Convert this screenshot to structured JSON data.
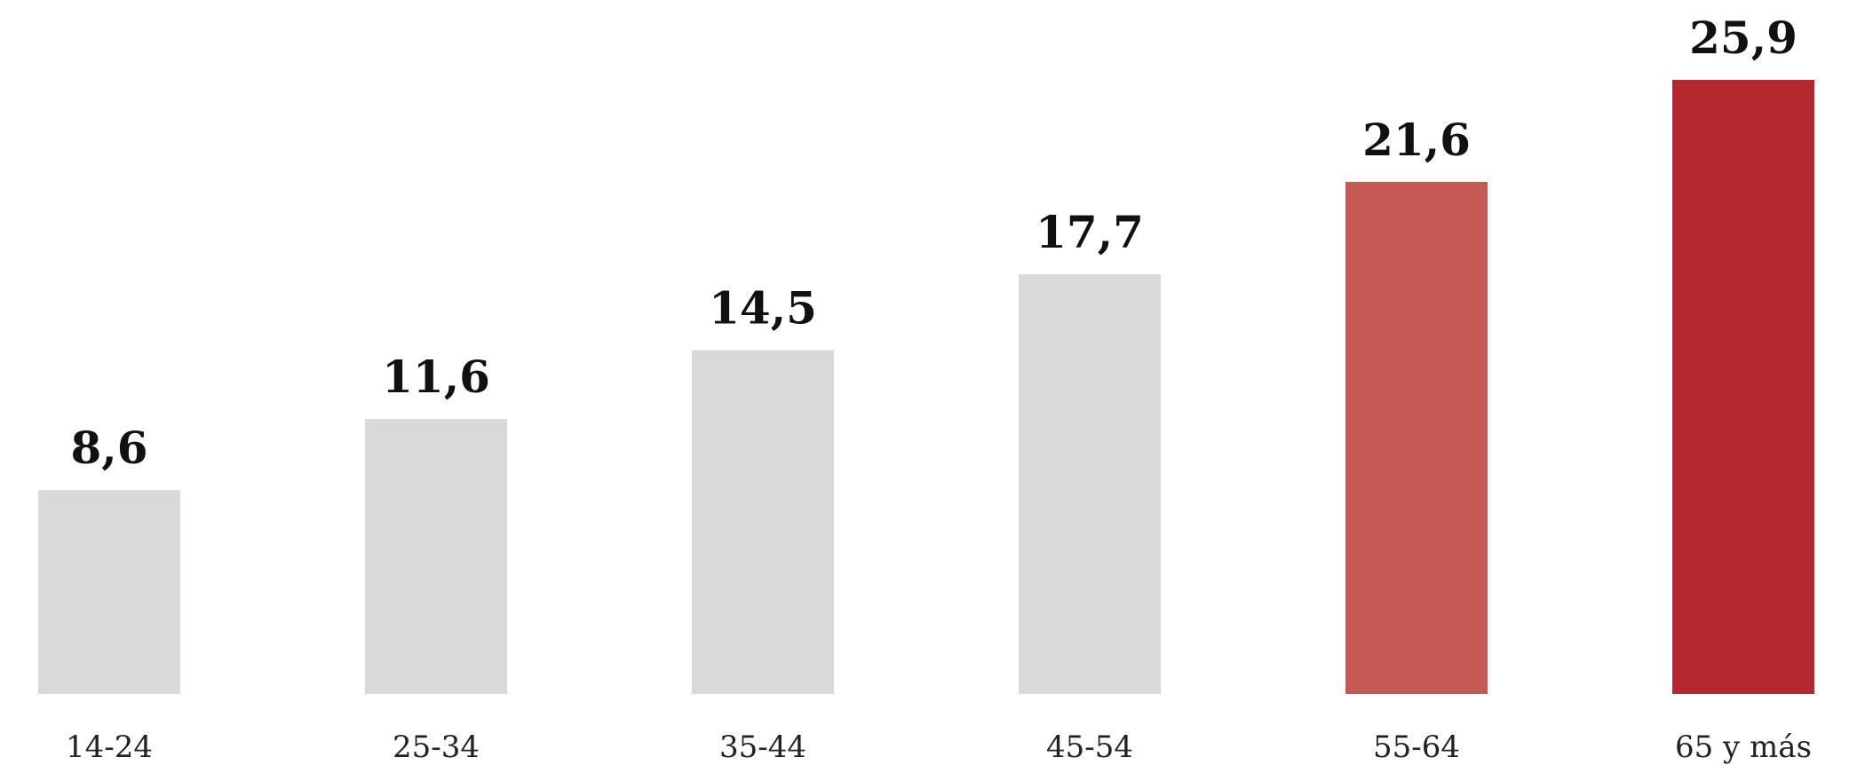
{
  "chart_data": {
    "type": "bar",
    "categories": [
      "14-24",
      "25-34",
      "35-44",
      "45-54",
      "55-64",
      "65 y más"
    ],
    "values": [
      8.6,
      11.6,
      14.5,
      17.7,
      21.6,
      25.9
    ],
    "value_labels": [
      "8,6",
      "11,6",
      "14,5",
      "17,7",
      "21,6",
      "25,9"
    ],
    "colors": [
      "#d9d9d9",
      "#d9d9d9",
      "#d9d9d9",
      "#d9d9d9",
      "#c55a55",
      "#b5272e"
    ],
    "title": "",
    "xlabel": "",
    "ylabel": "",
    "ylim": [
      0,
      25.9
    ],
    "grid": false,
    "legend": "none"
  }
}
